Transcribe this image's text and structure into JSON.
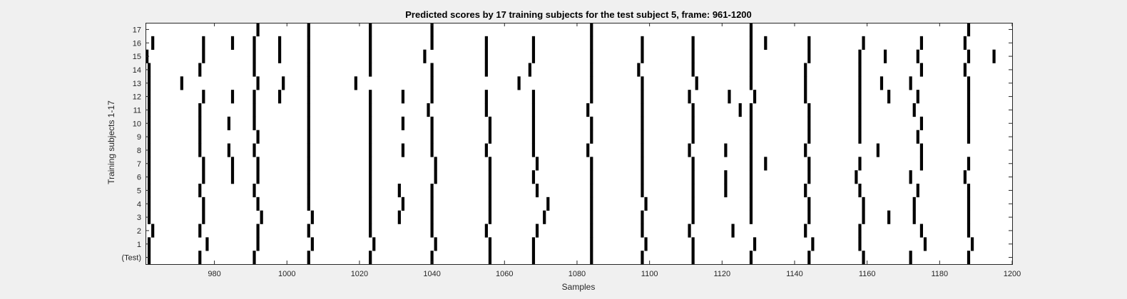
{
  "chart_data": {
    "type": "heatmap",
    "title": "Predicted scores by 17 training subjects for the test subject 5, frame: 961-1200",
    "xlabel": "Samples",
    "ylabel": "Training subjects 1-17",
    "xlim": [
      961,
      1200
    ],
    "x_ticks": [
      980,
      1000,
      1020,
      1040,
      1060,
      1080,
      1100,
      1120,
      1140,
      1160,
      1180,
      1200
    ],
    "y_tick_labels": [
      "(Test)",
      "1",
      "2",
      "3",
      "4",
      "5",
      "6",
      "7",
      "8",
      "9",
      "10",
      "11",
      "12",
      "13",
      "14",
      "15",
      "16",
      "17"
    ],
    "colors": {
      "mark": "#000000",
      "background": "#ffffff",
      "figure": "#f0f0f0"
    },
    "rows": [
      {
        "label": "(Test)",
        "marks": [
          962,
          976,
          991,
          1006,
          1023,
          1040,
          1056,
          1068,
          1084,
          1098,
          1112,
          1128,
          1144,
          1159,
          1172,
          1188
        ]
      },
      {
        "label": "1",
        "marks": [
          962,
          978,
          992,
          1007,
          1024,
          1041,
          1056,
          1068,
          1084,
          1099,
          1112,
          1129,
          1145,
          1158,
          1176,
          1189
        ]
      },
      {
        "label": "2",
        "marks": [
          963,
          976,
          992,
          1006,
          1023,
          1040,
          1055,
          1069,
          1084,
          1098,
          1111,
          1123,
          1143,
          1158,
          1175,
          1188
        ]
      },
      {
        "label": "3",
        "marks": [
          962,
          977,
          993,
          1007,
          1023,
          1031,
          1040,
          1056,
          1071,
          1084,
          1098,
          1112,
          1128,
          1144,
          1159,
          1166,
          1173,
          1188
        ]
      },
      {
        "label": "4",
        "marks": [
          962,
          977,
          992,
          1006,
          1023,
          1032,
          1040,
          1056,
          1072,
          1084,
          1099,
          1112,
          1128,
          1144,
          1159,
          1173,
          1188
        ]
      },
      {
        "label": "5",
        "marks": [
          962,
          976,
          991,
          1006,
          1023,
          1031,
          1040,
          1056,
          1069,
          1084,
          1098,
          1112,
          1121,
          1128,
          1143,
          1158,
          1174,
          1188
        ]
      },
      {
        "label": "6",
        "marks": [
          962,
          977,
          985,
          992,
          1006,
          1023,
          1041,
          1056,
          1068,
          1084,
          1098,
          1112,
          1121,
          1128,
          1144,
          1157,
          1172,
          1187
        ]
      },
      {
        "label": "7",
        "marks": [
          962,
          977,
          985,
          992,
          1006,
          1023,
          1041,
          1056,
          1069,
          1084,
          1098,
          1112,
          1128,
          1132,
          1144,
          1158,
          1175,
          1188
        ]
      },
      {
        "label": "8",
        "marks": [
          962,
          976,
          984,
          991,
          1006,
          1023,
          1032,
          1040,
          1055,
          1068,
          1083,
          1098,
          1111,
          1121,
          1128,
          1143,
          1163,
          1175
        ]
      },
      {
        "label": "9",
        "marks": [
          962,
          976,
          992,
          1006,
          1023,
          1040,
          1056,
          1068,
          1084,
          1098,
          1112,
          1128,
          1144,
          1158,
          1174,
          1188
        ]
      },
      {
        "label": "10",
        "marks": [
          962,
          976,
          984,
          991,
          1006,
          1023,
          1032,
          1040,
          1056,
          1068,
          1084,
          1098,
          1112,
          1128,
          1144,
          1158,
          1175,
          1188
        ]
      },
      {
        "label": "11",
        "marks": [
          962,
          976,
          991,
          1006,
          1023,
          1039,
          1055,
          1068,
          1083,
          1098,
          1112,
          1125,
          1128,
          1144,
          1158,
          1173,
          1188
        ]
      },
      {
        "label": "12",
        "marks": [
          962,
          977,
          985,
          991,
          998,
          1006,
          1023,
          1032,
          1040,
          1055,
          1068,
          1084,
          1098,
          1111,
          1122,
          1129,
          1143,
          1158,
          1166,
          1174,
          1188
        ]
      },
      {
        "label": "13",
        "marks": [
          962,
          971,
          992,
          999,
          1006,
          1019,
          1040,
          1064,
          1084,
          1098,
          1113,
          1128,
          1143,
          1158,
          1164,
          1172,
          1188
        ]
      },
      {
        "label": "14",
        "marks": [
          962,
          976,
          991,
          1006,
          1023,
          1040,
          1055,
          1067,
          1084,
          1097,
          1112,
          1128,
          1143,
          1158,
          1175,
          1187
        ]
      },
      {
        "label": "15",
        "marks": [
          961,
          977,
          991,
          998,
          1006,
          1023,
          1038,
          1055,
          1068,
          1084,
          1098,
          1112,
          1128,
          1144,
          1158,
          1165,
          1174,
          1188,
          1195
        ]
      },
      {
        "label": "16",
        "marks": [
          963,
          977,
          985,
          991,
          998,
          1006,
          1023,
          1040,
          1055,
          1068,
          1084,
          1098,
          1112,
          1128,
          1132,
          1144,
          1159,
          1175,
          1187
        ]
      },
      {
        "label": "17",
        "marks": [
          992,
          1006,
          1023,
          1040,
          1084,
          1128,
          1188
        ]
      }
    ]
  }
}
